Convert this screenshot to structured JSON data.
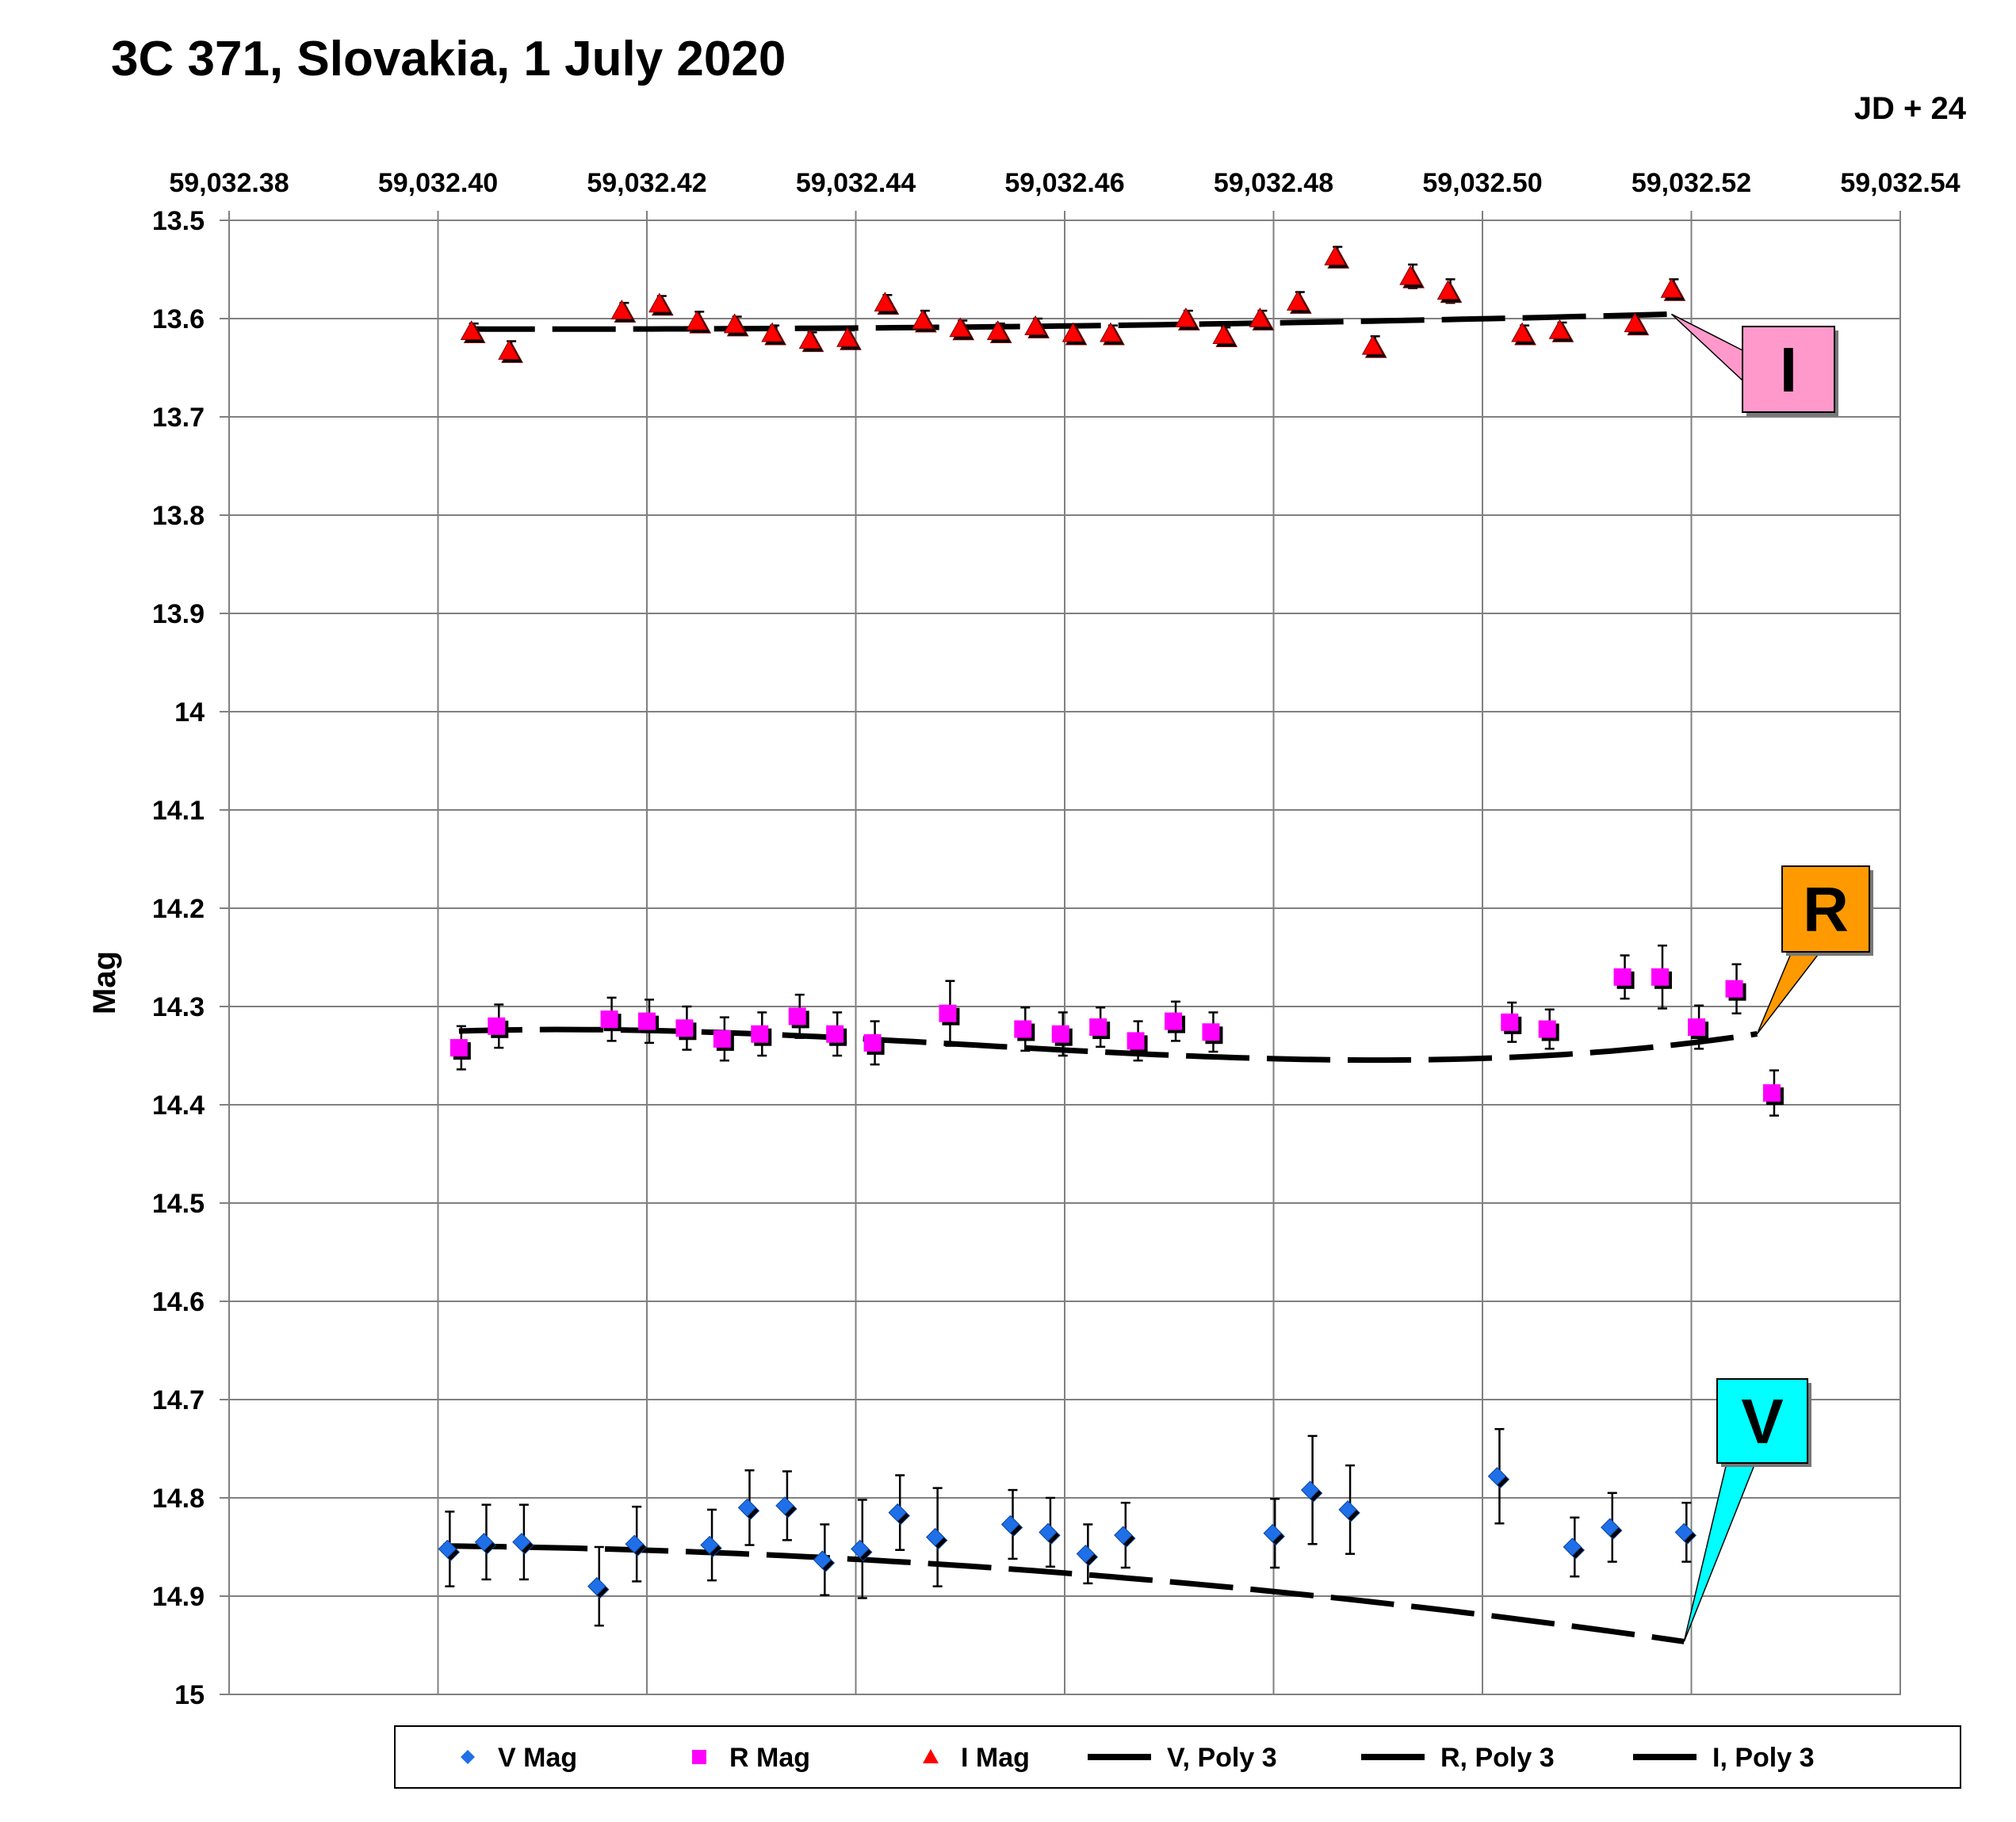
{
  "chart_data": {
    "type": "scatter",
    "title": "3C 371, Slovakia, 1 July 2020",
    "x_unit_note": "JD + 24",
    "ylabel": "Mag",
    "xlim": [
      59032.38,
      59032.54
    ],
    "ylim": [
      13.5,
      15.0
    ],
    "y_inverted": true,
    "x_tick_labels": [
      "59,032.38",
      "59,032.40",
      "59,032.42",
      "59,032.44",
      "59,032.46",
      "59,032.48",
      "59,032.50",
      "59,032.52",
      "59,032.54"
    ],
    "x_ticks": [
      59032.38,
      59032.4,
      59032.42,
      59032.44,
      59032.46,
      59032.48,
      59032.5,
      59032.52,
      59032.54
    ],
    "y_tick_labels": [
      "13.5",
      "13.6",
      "13.7",
      "13.8",
      "13.9",
      "14",
      "14.1",
      "14.2",
      "14.3",
      "14.4",
      "14.5",
      "14.6",
      "14.7",
      "14.8",
      "14.9",
      "15"
    ],
    "y_ticks": [
      13.5,
      13.6,
      13.7,
      13.8,
      13.9,
      14.0,
      14.1,
      14.2,
      14.3,
      14.4,
      14.5,
      14.6,
      14.7,
      14.8,
      14.9,
      15.0
    ],
    "grid": true,
    "legend_position": "bottom",
    "series": [
      {
        "name": "V Mag",
        "marker": "diamond",
        "color": "#1f6fe8",
        "points": [
          {
            "x": 59032.4009,
            "y": 14.852,
            "err": 0.038
          },
          {
            "x": 59032.4044,
            "y": 14.845,
            "err": 0.038
          },
          {
            "x": 59032.408,
            "y": 14.845,
            "err": 0.038
          },
          {
            "x": 59032.4152,
            "y": 14.89,
            "err": 0.04
          },
          {
            "x": 59032.4188,
            "y": 14.847,
            "err": 0.038
          },
          {
            "x": 59032.426,
            "y": 14.848,
            "err": 0.036
          },
          {
            "x": 59032.4296,
            "y": 14.81,
            "err": 0.038
          },
          {
            "x": 59032.4332,
            "y": 14.808,
            "err": 0.035
          },
          {
            "x": 59032.4368,
            "y": 14.863,
            "err": 0.036
          },
          {
            "x": 59032.4404,
            "y": 14.852,
            "err": 0.05
          },
          {
            "x": 59032.444,
            "y": 14.815,
            "err": 0.038
          },
          {
            "x": 59032.4476,
            "y": 14.84,
            "err": 0.05
          },
          {
            "x": 59032.4548,
            "y": 14.827,
            "err": 0.035
          },
          {
            "x": 59032.4584,
            "y": 14.835,
            "err": 0.035
          },
          {
            "x": 59032.462,
            "y": 14.857,
            "err": 0.03
          },
          {
            "x": 59032.4656,
            "y": 14.838,
            "err": 0.033
          },
          {
            "x": 59032.4799,
            "y": 14.836,
            "err": 0.035
          },
          {
            "x": 59032.4835,
            "y": 14.792,
            "err": 0.055
          },
          {
            "x": 59032.4871,
            "y": 14.812,
            "err": 0.045
          },
          {
            "x": 59032.5014,
            "y": 14.778,
            "err": 0.048
          },
          {
            "x": 59032.5086,
            "y": 14.85,
            "err": 0.03
          },
          {
            "x": 59032.5122,
            "y": 14.83,
            "err": 0.035
          },
          {
            "x": 59032.5193,
            "y": 14.835,
            "err": 0.03
          }
        ]
      },
      {
        "name": "R Mag",
        "marker": "square",
        "color": "#ff00ff",
        "points": [
          {
            "x": 59032.402,
            "y": 14.342,
            "err": 0.022
          },
          {
            "x": 59032.4056,
            "y": 14.32,
            "err": 0.022
          },
          {
            "x": 59032.4164,
            "y": 14.313,
            "err": 0.022
          },
          {
            "x": 59032.42,
            "y": 14.315,
            "err": 0.022
          },
          {
            "x": 59032.4236,
            "y": 14.322,
            "err": 0.022
          },
          {
            "x": 59032.4272,
            "y": 14.333,
            "err": 0.022
          },
          {
            "x": 59032.4308,
            "y": 14.328,
            "err": 0.022
          },
          {
            "x": 59032.4344,
            "y": 14.31,
            "err": 0.022
          },
          {
            "x": 59032.438,
            "y": 14.328,
            "err": 0.022
          },
          {
            "x": 59032.4416,
            "y": 14.337,
            "err": 0.022
          },
          {
            "x": 59032.4488,
            "y": 14.307,
            "err": 0.033
          },
          {
            "x": 59032.456,
            "y": 14.323,
            "err": 0.022
          },
          {
            "x": 59032.4596,
            "y": 14.328,
            "err": 0.022
          },
          {
            "x": 59032.4632,
            "y": 14.321,
            "err": 0.02
          },
          {
            "x": 59032.4668,
            "y": 14.335,
            "err": 0.02
          },
          {
            "x": 59032.4704,
            "y": 14.315,
            "err": 0.02
          },
          {
            "x": 59032.474,
            "y": 14.326,
            "err": 0.02
          },
          {
            "x": 59032.5026,
            "y": 14.316,
            "err": 0.02
          },
          {
            "x": 59032.5062,
            "y": 14.323,
            "err": 0.02
          },
          {
            "x": 59032.5134,
            "y": 14.27,
            "err": 0.022
          },
          {
            "x": 59032.517,
            "y": 14.27,
            "err": 0.032
          },
          {
            "x": 59032.5205,
            "y": 14.321,
            "err": 0.022
          },
          {
            "x": 59032.5241,
            "y": 14.282,
            "err": 0.025
          },
          {
            "x": 59032.5277,
            "y": 14.388,
            "err": 0.023
          }
        ]
      },
      {
        "name": "I Mag",
        "marker": "triangle",
        "color": "#ff0000",
        "points": [
          {
            "x": 59032.4032,
            "y": 13.613,
            "err": 0.008
          },
          {
            "x": 59032.4068,
            "y": 13.633,
            "err": 0.01
          },
          {
            "x": 59032.4176,
            "y": 13.592,
            "err": 0.008
          },
          {
            "x": 59032.4212,
            "y": 13.585,
            "err": 0.008
          },
          {
            "x": 59032.4248,
            "y": 13.603,
            "err": 0.01
          },
          {
            "x": 59032.4284,
            "y": 13.606,
            "err": 0.008
          },
          {
            "x": 59032.432,
            "y": 13.615,
            "err": 0.008
          },
          {
            "x": 59032.4356,
            "y": 13.622,
            "err": 0.008
          },
          {
            "x": 59032.4392,
            "y": 13.62,
            "err": 0.008
          },
          {
            "x": 59032.4428,
            "y": 13.584,
            "err": 0.008
          },
          {
            "x": 59032.4464,
            "y": 13.602,
            "err": 0.01
          },
          {
            "x": 59032.45,
            "y": 13.61,
            "err": 0.008
          },
          {
            "x": 59032.4536,
            "y": 13.613,
            "err": 0.008
          },
          {
            "x": 59032.4572,
            "y": 13.608,
            "err": 0.008
          },
          {
            "x": 59032.4608,
            "y": 13.615,
            "err": 0.008
          },
          {
            "x": 59032.4644,
            "y": 13.615,
            "err": 0.008
          },
          {
            "x": 59032.4716,
            "y": 13.6,
            "err": 0.008
          },
          {
            "x": 59032.4752,
            "y": 13.617,
            "err": 0.008
          },
          {
            "x": 59032.4787,
            "y": 13.6,
            "err": 0.008
          },
          {
            "x": 59032.4823,
            "y": 13.583,
            "err": 0.01
          },
          {
            "x": 59032.4859,
            "y": 13.537,
            "err": 0.01
          },
          {
            "x": 59032.4895,
            "y": 13.628,
            "err": 0.01
          },
          {
            "x": 59032.4931,
            "y": 13.557,
            "err": 0.012
          },
          {
            "x": 59032.4967,
            "y": 13.572,
            "err": 0.012
          },
          {
            "x": 59032.5038,
            "y": 13.615,
            "err": 0.008
          },
          {
            "x": 59032.5074,
            "y": 13.612,
            "err": 0.008
          },
          {
            "x": 59032.5146,
            "y": 13.605,
            "err": 0.008
          },
          {
            "x": 59032.5181,
            "y": 13.57,
            "err": 0.01
          }
        ]
      },
      {
        "name": "V, Poly 3",
        "type": "line",
        "dashed": true,
        "color": "#000000",
        "x_start": 59032.4005,
        "x_end": 59032.5193,
        "coefficients_about_x0": {
          "x0": 59032.4,
          "c0": 14.8489,
          "c1": 0.1,
          "c2": 6.0,
          "c3": 0.0
        }
      },
      {
        "name": "R, Poly 3",
        "type": "line",
        "dashed": true,
        "color": "#000000",
        "x_start": 59032.402,
        "x_end": 59032.5263,
        "coefficients_about_x0": {
          "x0": 59032.4,
          "c0": 14.3258,
          "c1": -0.42,
          "c2": 20.0,
          "c3": -131.0
        }
      },
      {
        "name": "I, Poly 3",
        "type": "line",
        "dashed": true,
        "color": "#000000",
        "x_start": 59032.4032,
        "x_end": 59032.5181,
        "coefficients_about_x0": {
          "x0": 59032.4,
          "c0": 13.6105,
          "c1": 0.03,
          "c2": -1.33,
          "c3": 0.0
        }
      }
    ],
    "callouts": [
      {
        "label": "I",
        "fill": "#ff99cc",
        "points_to_series": "I, Poly 3"
      },
      {
        "label": "R",
        "fill": "#ff9900",
        "points_to_series": "R, Poly 3"
      },
      {
        "label": "V",
        "fill": "#00ffff",
        "points_to_series": "V, Poly 3"
      }
    ]
  }
}
